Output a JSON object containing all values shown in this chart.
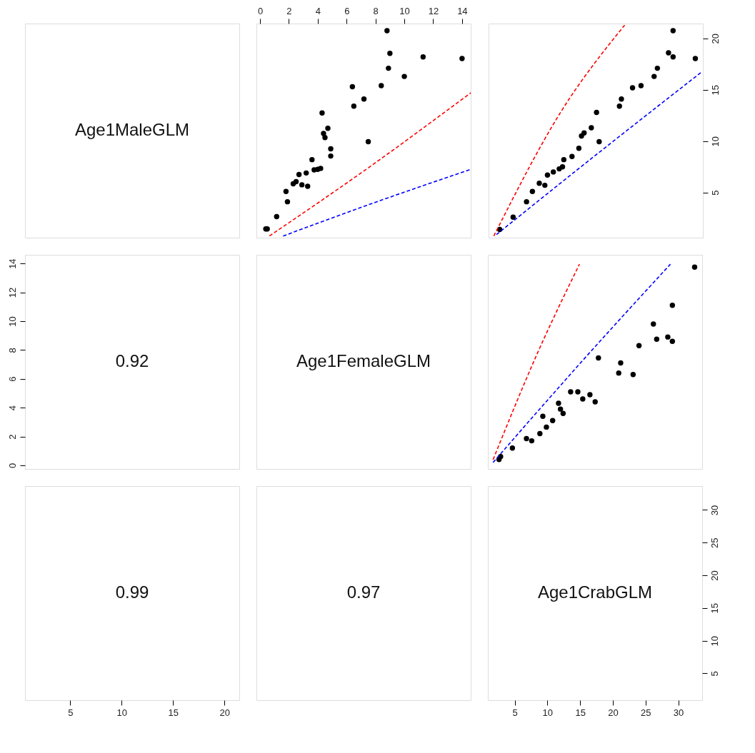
{
  "chart_data": [
    {
      "type": "other",
      "annotations": [
        "Age1MaleGLM"
      ]
    },
    {
      "type": "scatter",
      "xlim": [
        -0.25,
        14.6
      ],
      "xticks": [
        0,
        2,
        4,
        6,
        8,
        10,
        12,
        14
      ],
      "ylim": [
        0.6,
        21.45
      ],
      "yticks": [
        5,
        10,
        15,
        20
      ],
      "tick_labels": "x",
      "series": [
        {
          "type": "scatter",
          "marker": "circle",
          "color": "#000000",
          "x": [
            0.4,
            0.5,
            1.15,
            1.9,
            1.8,
            2.3,
            2.5,
            2.7,
            2.9,
            3.2,
            3.3,
            3.6,
            3.75,
            4.0,
            4.2,
            4.3,
            4.4,
            4.5,
            4.7,
            4.9,
            4.9,
            6.4,
            6.5,
            7.2,
            7.5,
            8.4,
            8.8,
            9.0,
            8.9,
            10.0,
            11.3,
            14.0
          ],
          "values": [
            1.45,
            1.45,
            2.65,
            4.1,
            5.1,
            5.85,
            6.05,
            6.75,
            5.75,
            6.9,
            5.6,
            8.2,
            7.2,
            7.25,
            7.35,
            12.75,
            10.75,
            10.35,
            11.25,
            9.25,
            8.55,
            15.3,
            13.4,
            14.1,
            9.95,
            15.4,
            20.75,
            18.55,
            17.1,
            16.3,
            18.2,
            18.05
          ]
        },
        {
          "type": "line",
          "color": "#ff0000",
          "line_style": "dashed",
          "x": [
            0.65,
            8.0,
            14.6
          ],
          "values": [
            0.76,
            7.9,
            14.7
          ]
        },
        {
          "type": "line",
          "color": "#0000ff",
          "line_style": "dashed",
          "x": [
            1.6,
            7.4,
            14.6
          ],
          "values": [
            0.76,
            3.75,
            7.25
          ]
        }
      ]
    },
    {
      "type": "scatter",
      "xlim": [
        0.9,
        33.65
      ],
      "xticks": [
        5,
        10,
        15,
        20,
        25,
        30
      ],
      "ylim": [
        0.6,
        21.45
      ],
      "yticks": [
        5,
        10,
        15,
        20
      ],
      "tick_labels": "y",
      "series": [
        {
          "type": "scatter",
          "marker": "circle",
          "color": "#000000",
          "x": [
            2.6,
            4.65,
            6.7,
            7.6,
            8.65,
            9.5,
            9.9,
            10.8,
            11.7,
            12.2,
            12.4,
            13.65,
            14.7,
            15.1,
            15.5,
            16.6,
            17.4,
            17.8,
            20.9,
            21.2,
            22.9,
            24.2,
            26.2,
            26.7,
            28.4,
            29.1,
            29.1,
            32.5
          ],
          "values": [
            1.4,
            2.6,
            4.1,
            5.1,
            5.9,
            5.7,
            6.7,
            7.0,
            7.3,
            7.5,
            8.2,
            8.5,
            9.3,
            10.5,
            10.8,
            11.3,
            12.8,
            9.95,
            13.4,
            14.1,
            15.2,
            15.4,
            16.3,
            17.1,
            18.6,
            18.2,
            20.75,
            18.05
          ]
        },
        {
          "type": "line",
          "color": "#ff0000",
          "line_style": "dashed",
          "x": [
            1.7,
            12.05,
            21.7
          ],
          "values": [
            0.76,
            12.95,
            21.3
          ]
        },
        {
          "type": "line",
          "color": "#0000ff",
          "line_style": "dashed",
          "x": [
            2.1,
            16.7,
            33.4
          ],
          "values": [
            0.9,
            8.35,
            16.7
          ]
        }
      ]
    },
    {
      "type": "scatter",
      "annotations": [
        "0.92"
      ],
      "xlim": [
        0.6,
        21.45
      ],
      "xticks": [
        5,
        10,
        15,
        20
      ],
      "ylim": [
        -0.25,
        14.6
      ],
      "yticks": [
        0,
        2,
        4,
        6,
        8,
        10,
        12,
        14
      ],
      "tick_labels": "y"
    },
    {
      "type": "other",
      "annotations": [
        "Age1FemaleGLM"
      ]
    },
    {
      "type": "scatter",
      "xlim": [
        0.9,
        33.65
      ],
      "xticks": [
        5,
        10,
        15,
        20,
        25,
        30
      ],
      "ylim": [
        -0.25,
        14.6
      ],
      "yticks": [
        0,
        2,
        4,
        6,
        8,
        10,
        12,
        14
      ],
      "tick_labels": false,
      "series": [
        {
          "type": "scatter",
          "marker": "circle",
          "color": "#000000",
          "x": [
            2.6,
            2.85,
            4.65,
            6.8,
            7.6,
            8.85,
            9.3,
            9.85,
            10.8,
            11.7,
            12.4,
            12.0,
            13.55,
            14.65,
            15.4,
            16.5,
            17.3,
            17.8,
            20.9,
            21.2,
            23.1,
            24.0,
            26.2,
            26.7,
            28.4,
            29.1,
            29.1,
            32.5
          ],
          "values": [
            0.4,
            0.6,
            1.2,
            1.85,
            1.7,
            2.2,
            3.4,
            2.65,
            3.1,
            4.3,
            3.6,
            3.9,
            5.1,
            5.1,
            4.6,
            4.9,
            4.4,
            7.45,
            6.4,
            7.1,
            6.3,
            8.3,
            9.8,
            8.75,
            8.9,
            8.6,
            11.1,
            13.75
          ]
        },
        {
          "type": "line",
          "color": "#ff0000",
          "line_style": "dashed",
          "x": [
            1.7,
            8.5,
            14.9
          ],
          "values": [
            0.4,
            7.8,
            13.95
          ]
        },
        {
          "type": "line",
          "color": "#0000ff",
          "line_style": "dashed",
          "x": [
            1.7,
            15.25,
            28.8
          ],
          "values": [
            0.2,
            7.2,
            13.95
          ]
        }
      ]
    },
    {
      "type": "scatter",
      "annotations": [
        "0.99"
      ],
      "xlim": [
        0.6,
        21.45
      ],
      "xticks": [
        5,
        10,
        15,
        20
      ],
      "ylim": [
        0.9,
        33.65
      ],
      "yticks": [
        5,
        10,
        15,
        20,
        25,
        30
      ],
      "tick_labels": "x"
    },
    {
      "type": "other",
      "annotations": [
        "0.97"
      ]
    },
    {
      "type": "scatter",
      "annotations": [
        "Age1CrabGLM"
      ],
      "xlim": [
        0.9,
        33.65
      ],
      "xticks": [
        5,
        10,
        15,
        20,
        25,
        30
      ],
      "ylim": [
        0.9,
        33.65
      ],
      "yticks": [
        5,
        10,
        15,
        20,
        25,
        30
      ]
    }
  ]
}
